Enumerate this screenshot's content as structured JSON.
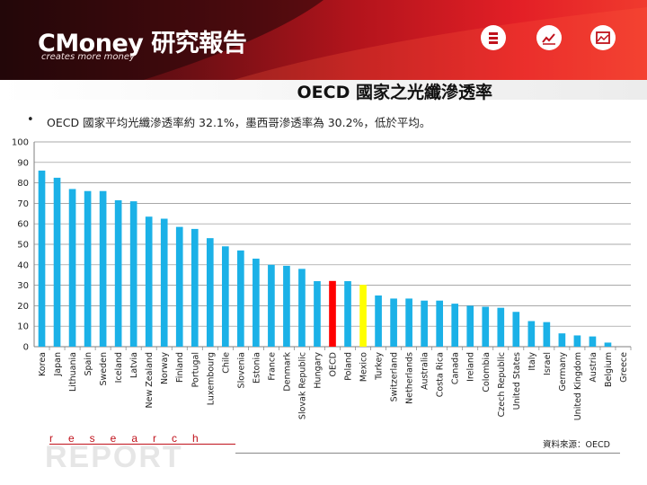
{
  "header": {
    "logo_text": "CMoney 研究報告",
    "logo_tagline": "creates more money",
    "icons": [
      "list-icon",
      "trend-chart-icon",
      "picture-chart-icon"
    ],
    "brand_color": "#e31f26"
  },
  "title": "OECD 國家之光纖滲透率",
  "bullet": "OECD 國家平均光纖滲透率約 32.1%，墨西哥滲透率為 30.2%，低於平均。",
  "footer": {
    "research": "research",
    "report": "REPORT",
    "source": "資料來源：OECD"
  },
  "chart_data": {
    "type": "bar",
    "categories": [
      "Korea",
      "Japan",
      "Lithuania",
      "Spain",
      "Sweden",
      "Iceland",
      "Latvia",
      "New Zealand",
      "Norway",
      "Finland",
      "Portugal",
      "Luxembourg",
      "Chile",
      "Slovenia",
      "Estonia",
      "France",
      "Denmark",
      "Slovak Republic",
      "Hungary",
      "OECD",
      "Poland",
      "Mexico",
      "Turkey",
      "Switzerland",
      "Netherlands",
      "Australia",
      "Costa Rica",
      "Canada",
      "Ireland",
      "Colombia",
      "Czech Republic",
      "United States",
      "Italy",
      "Israel",
      "Germany",
      "United Kingdom",
      "Austria",
      "Belgium",
      "Greece"
    ],
    "values": [
      86,
      82.5,
      77,
      76,
      76,
      71.5,
      71,
      63.5,
      62.5,
      58.5,
      57.5,
      53,
      49,
      47,
      43,
      40,
      39.5,
      38,
      32,
      32.1,
      32,
      30.2,
      25,
      23.5,
      23.5,
      22.5,
      22.5,
      21,
      20,
      19.5,
      19,
      17,
      12.5,
      12,
      6.5,
      5.5,
      5,
      2,
      0
    ],
    "colors": {
      "default": "#1bb1e7",
      "OECD": "#ff0000",
      "Mexico": "#ffff00"
    },
    "yticks": [
      0,
      10,
      20,
      30,
      40,
      50,
      60,
      70,
      80,
      90,
      100
    ],
    "ylim": [
      0,
      100
    ],
    "grid": true,
    "xlabel": "",
    "ylabel": ""
  }
}
